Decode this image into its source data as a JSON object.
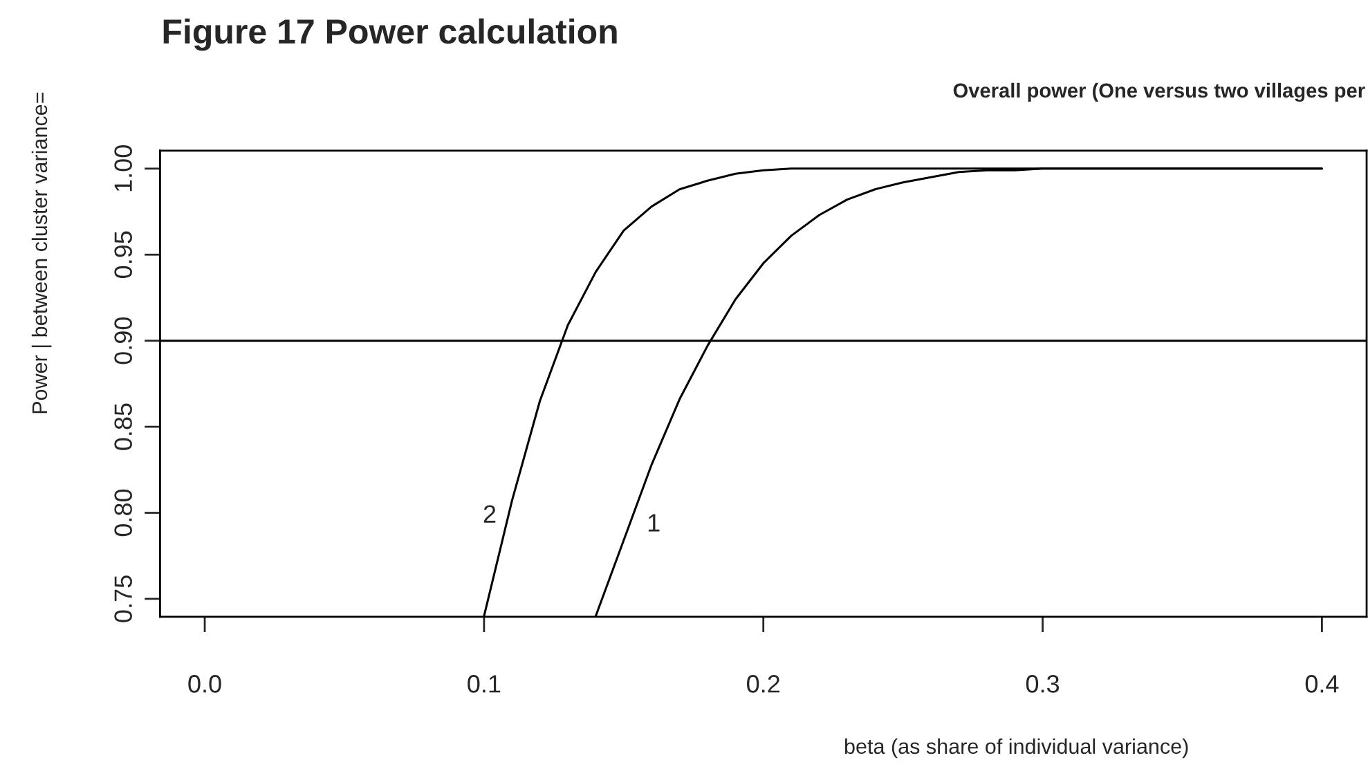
{
  "chart_data": {
    "type": "line",
    "title": "Figure 17 Power calculation",
    "subtitle": "Overall power (One versus two villages per",
    "xlabel": "beta (as share of individual variance)",
    "ylabel": "Power | between cluster variance=",
    "series": [
      {
        "name": "1",
        "color": "#000000",
        "x": [
          0.14,
          0.15,
          0.16,
          0.17,
          0.18,
          0.19,
          0.2,
          0.21,
          0.22,
          0.23,
          0.24,
          0.25,
          0.26,
          0.27,
          0.28,
          0.29,
          0.3,
          0.31,
          0.32,
          0.33,
          0.34,
          0.35,
          0.36,
          0.37,
          0.38,
          0.39,
          0.4
        ],
        "values": [
          0.74,
          0.784,
          0.828,
          0.866,
          0.897,
          0.924,
          0.945,
          0.961,
          0.973,
          0.982,
          0.988,
          0.992,
          0.995,
          0.998,
          0.999,
          0.999,
          1.0,
          1.0,
          1.0,
          1.0,
          1.0,
          1.0,
          1.0,
          1.0,
          1.0,
          1.0,
          1.0
        ]
      },
      {
        "name": "2",
        "color": "#000000",
        "x": [
          0.1,
          0.11,
          0.12,
          0.13,
          0.14,
          0.15,
          0.16,
          0.17,
          0.18,
          0.19,
          0.2,
          0.21,
          0.22,
          0.23,
          0.24,
          0.25,
          0.26,
          0.27,
          0.28,
          0.29,
          0.3,
          0.31,
          0.32,
          0.33,
          0.34,
          0.35,
          0.36,
          0.37,
          0.38,
          0.39,
          0.4
        ],
        "values": [
          0.74,
          0.807,
          0.865,
          0.909,
          0.94,
          0.964,
          0.978,
          0.988,
          0.993,
          0.997,
          0.999,
          1.0,
          1.0,
          1.0,
          1.0,
          1.0,
          1.0,
          1.0,
          1.0,
          1.0,
          1.0,
          1.0,
          1.0,
          1.0,
          1.0,
          1.0,
          1.0,
          1.0,
          1.0,
          1.0,
          1.0
        ]
      }
    ],
    "xlim": [
      -0.016,
      0.416
    ],
    "ylim": [
      0.7396,
      1.0104
    ],
    "xticks": [
      {
        "value": 0,
        "label": "0.0"
      },
      0.1,
      0.2,
      0.3,
      0.4
    ],
    "yticks": [
      0.75,
      {
        "value": 0.8,
        "label": "0.80"
      },
      0.85,
      {
        "value": 0.9,
        "label": "0.90"
      },
      0.95,
      {
        "value": 1,
        "label": "1.00"
      }
    ],
    "ref_lines": [
      {
        "axis": "y",
        "value": 0.9,
        "color": "#000000"
      }
    ],
    "grid": false,
    "legend": false,
    "line_style": "solid",
    "marker": "none"
  }
}
